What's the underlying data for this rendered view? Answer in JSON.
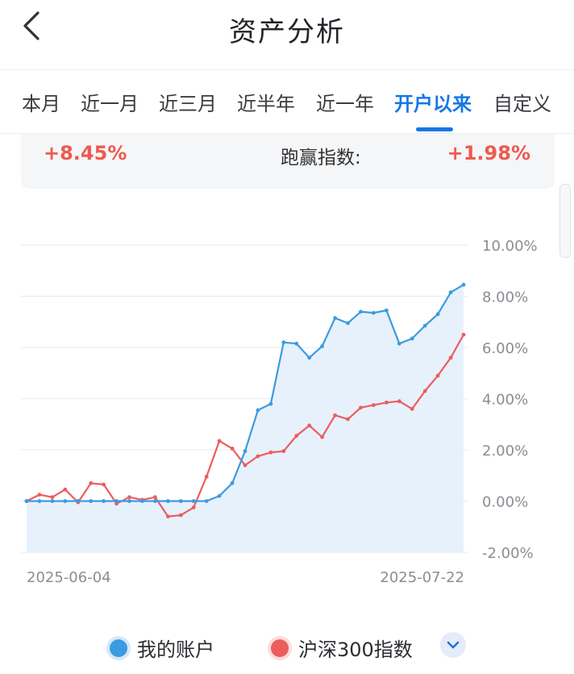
{
  "header": {
    "title": "资产分析",
    "back_icon": "chevron-left-icon"
  },
  "tabs": [
    {
      "label": "本月",
      "active": false
    },
    {
      "label": "近一月",
      "active": false
    },
    {
      "label": "近三月",
      "active": false
    },
    {
      "label": "近半年",
      "active": false
    },
    {
      "label": "近一年",
      "active": false
    },
    {
      "label": "开户以来",
      "active": true
    },
    {
      "label": "自定义",
      "active": false
    }
  ],
  "summary": {
    "return_value": "+8.45%",
    "excess_label": "跑赢指数:",
    "excess_value": "+1.98%"
  },
  "colors": {
    "accent": "#1677e6",
    "positive": "#ee5a4f",
    "series_account": "#3c9be0",
    "series_index": "#ec5d5d"
  },
  "chart_data": {
    "type": "line",
    "x_start_label": "2025-06-04",
    "x_end_label": "2025-07-22",
    "y_ticks": [
      "10.00%",
      "8.00%",
      "6.00%",
      "4.00%",
      "2.00%",
      "0.00%",
      "-2.00%"
    ],
    "ylim": [
      -2,
      10
    ],
    "grid": true,
    "legend_placement": "bottom",
    "series": [
      {
        "name": "我的账户",
        "color": "#3c9be0",
        "fill": true,
        "values": [
          0,
          0,
          0,
          0,
          0,
          0,
          0,
          0,
          0,
          0,
          0,
          0,
          0,
          0,
          0,
          0.2,
          0.7,
          1.95,
          3.55,
          3.8,
          6.2,
          6.15,
          5.6,
          6.05,
          7.15,
          6.95,
          7.4,
          7.35,
          7.45,
          6.15,
          6.35,
          6.85,
          7.3,
          8.15,
          8.45
        ]
      },
      {
        "name": "沪深300指数",
        "color": "#ec5d5d",
        "fill": false,
        "values": [
          0,
          0.25,
          0.15,
          0.45,
          -0.05,
          0.7,
          0.65,
          -0.1,
          0.15,
          0.05,
          0.15,
          -0.6,
          -0.55,
          -0.25,
          0.95,
          2.35,
          2.05,
          1.4,
          1.75,
          1.9,
          1.95,
          2.55,
          2.95,
          2.5,
          3.35,
          3.2,
          3.65,
          3.75,
          3.85,
          3.9,
          3.6,
          4.3,
          4.9,
          5.6,
          6.5
        ]
      }
    ]
  },
  "legend": {
    "items": [
      {
        "label": "我的账户",
        "color": "#3c9be0"
      },
      {
        "label": "沪深300指数",
        "color": "#ec5d5d"
      }
    ],
    "toggle_icon": "chevron-down-icon"
  }
}
